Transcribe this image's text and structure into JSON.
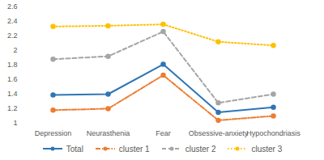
{
  "chart_data": {
    "type": "line",
    "categories": [
      "Depression",
      "Neurasthenia",
      "Fear",
      "Obsessive-anxiety",
      "Hypochondriasis"
    ],
    "series": [
      {
        "name": "Total",
        "color": "#2e75b6",
        "line_style": "solid",
        "marker": "circle",
        "values": [
          1.39,
          1.4,
          1.81,
          1.15,
          1.22
        ]
      },
      {
        "name": "cluster 1",
        "color": "#ed7d31",
        "line_style": "dashdot",
        "marker": "circle",
        "values": [
          1.18,
          1.2,
          1.66,
          1.04,
          1.1
        ]
      },
      {
        "name": "cluster 2",
        "color": "#a5a5a5",
        "line_style": "dashed",
        "marker": "circle",
        "values": [
          1.88,
          1.92,
          2.26,
          1.28,
          1.4
        ]
      },
      {
        "name": "cluster 3",
        "color": "#ffc000",
        "line_style": "dotted",
        "marker": "circle",
        "values": [
          2.33,
          2.34,
          2.36,
          2.12,
          2.07
        ]
      }
    ],
    "ylim": [
      1,
      2.6
    ],
    "yticks": [
      1,
      1.2,
      1.4,
      1.6,
      1.8,
      2,
      2.2,
      2.4,
      2.6
    ],
    "grid": false,
    "legend": "bottom"
  }
}
